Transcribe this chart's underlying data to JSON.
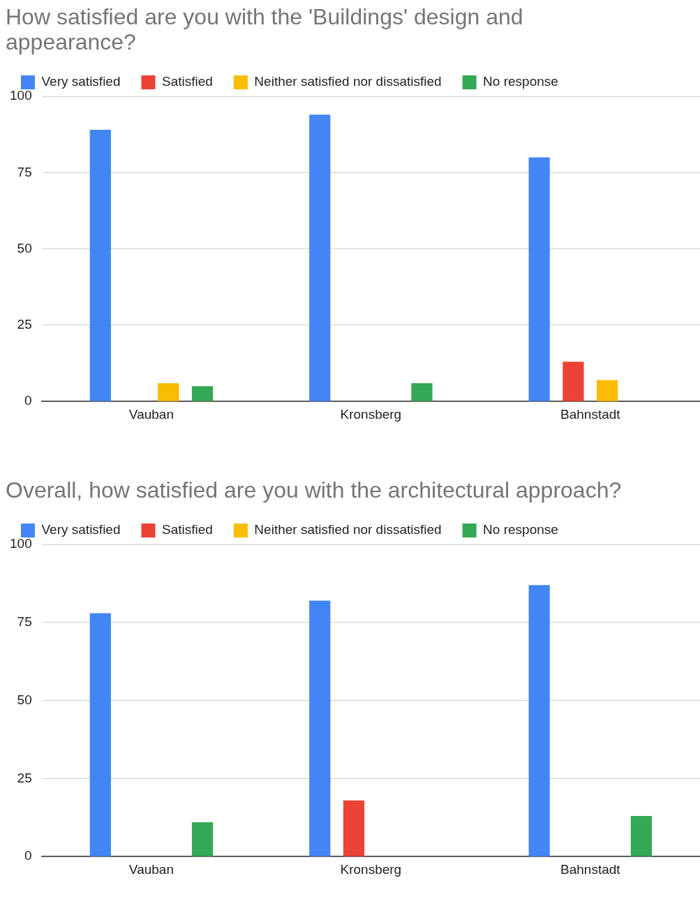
{
  "chart_data": [
    {
      "type": "bar",
      "title": "How satisfied are you with the 'Buildings' design and appearance?",
      "categories": [
        "Vauban",
        "Kronsberg",
        "Bahnstadt"
      ],
      "series": [
        {
          "name": "Very satisfied",
          "color": "#4285f4",
          "values": [
            89,
            94,
            80
          ]
        },
        {
          "name": "Satisfied",
          "color": "#ea4335",
          "values": [
            null,
            null,
            13
          ]
        },
        {
          "name": "Neither satisfied nor dissatisfied",
          "color": "#fbbc04",
          "values": [
            6,
            null,
            7
          ]
        },
        {
          "name": "No response",
          "color": "#34a853",
          "values": [
            5,
            6,
            null
          ]
        }
      ],
      "ylim": [
        0,
        100
      ],
      "yticks": [
        0,
        25,
        50,
        75,
        100
      ],
      "grid": "y",
      "legend": "top"
    },
    {
      "type": "bar",
      "title": "Overall, how satisfied are you with the architectural approach?",
      "categories": [
        "Vauban",
        "Kronsberg",
        "Bahnstadt"
      ],
      "series": [
        {
          "name": "Very satisfied",
          "color": "#4285f4",
          "values": [
            78,
            82,
            87
          ]
        },
        {
          "name": "Satisfied",
          "color": "#ea4335",
          "values": [
            null,
            18,
            null
          ]
        },
        {
          "name": "Neither satisfied nor dissatisfied",
          "color": "#fbbc04",
          "values": [
            null,
            null,
            null
          ]
        },
        {
          "name": "No response",
          "color": "#34a853",
          "values": [
            11,
            null,
            13
          ]
        }
      ],
      "ylim": [
        0,
        100
      ],
      "yticks": [
        0,
        25,
        50,
        75,
        100
      ],
      "grid": "y",
      "legend": "top"
    }
  ]
}
